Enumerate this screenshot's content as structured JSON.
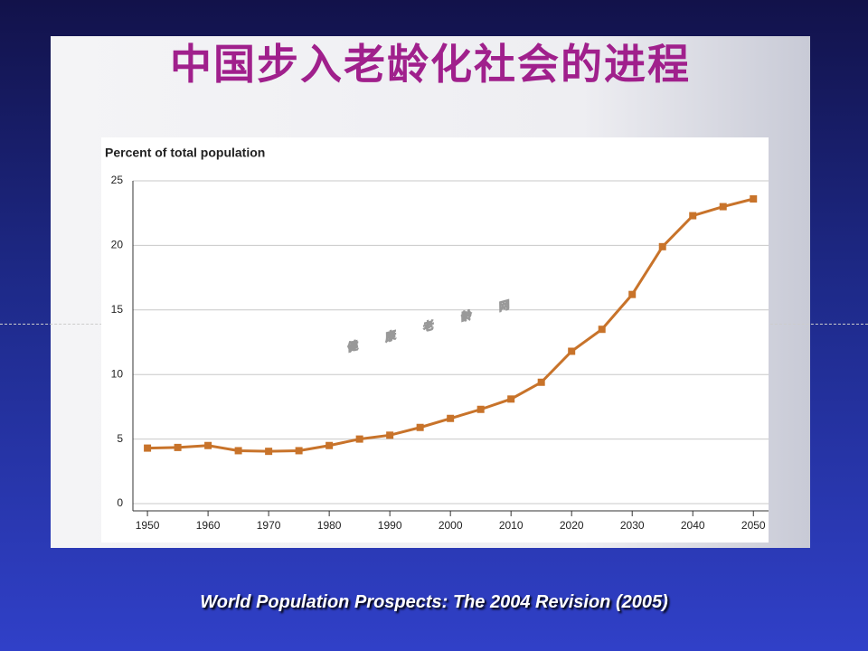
{
  "title": "中国步入老龄化社会的进程",
  "watermark": "健 康 老 龄 网",
  "source": "World Population Prospects: The 2004 Revision (2005)",
  "chart_data": {
    "type": "line",
    "y_label": "Percent of total population",
    "x": [
      1950,
      1955,
      1960,
      1965,
      1970,
      1975,
      1980,
      1985,
      1990,
      1995,
      2000,
      2005,
      2010,
      2015,
      2020,
      2025,
      2030,
      2035,
      2040,
      2045,
      2050
    ],
    "series": [
      {
        "color": "#c8732a",
        "values": [
          4.3,
          4.35,
          4.5,
          4.1,
          4.05,
          4.1,
          4.5,
          5.0,
          5.3,
          5.9,
          6.6,
          7.3,
          8.1,
          9.4,
          11.8,
          13.5,
          16.2,
          19.9,
          22.3,
          23.0,
          23.6
        ]
      }
    ],
    "xlim": [
      1947.6,
      2052.5
    ],
    "xticks": [
      1950,
      1960,
      1970,
      1980,
      1990,
      2000,
      2010,
      2020,
      2030,
      2040,
      2050
    ],
    "ylim": [
      0,
      25
    ],
    "yticks": [
      0,
      5,
      10,
      15,
      20,
      25
    ],
    "grid": true
  }
}
